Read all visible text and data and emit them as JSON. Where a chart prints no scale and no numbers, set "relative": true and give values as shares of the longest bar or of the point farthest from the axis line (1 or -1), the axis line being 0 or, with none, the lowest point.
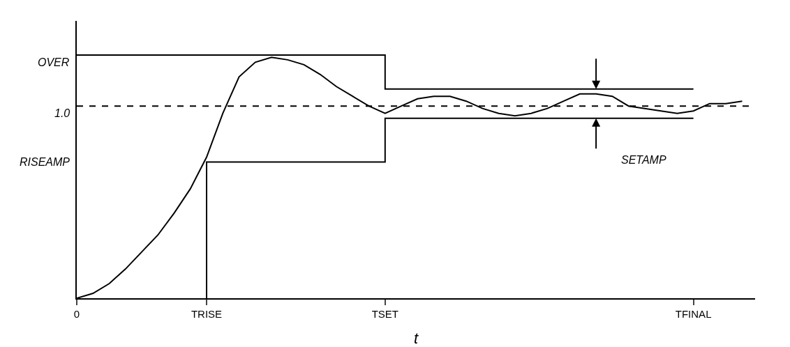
{
  "chart_data": {
    "type": "line",
    "xlabel": "t",
    "relative": true,
    "categories": [
      "0",
      null,
      null,
      null,
      null,
      null,
      null,
      null,
      "TRISE",
      null,
      null,
      null,
      null,
      null,
      null,
      null,
      null,
      null,
      null,
      "TSET",
      null,
      null,
      null,
      null,
      null,
      null,
      null,
      null,
      null,
      null,
      null,
      null,
      null,
      null,
      null,
      null,
      null,
      null,
      "TFINAL",
      null,
      null,
      null
    ],
    "grid": false,
    "marker": "none",
    "series": [
      {
        "color": "#000000",
        "line_style": "solid",
        "values": [
          0,
          0.02,
          0.06,
          0.12,
          0.19,
          0.26,
          0.35,
          0.45,
          0.58,
          0.76,
          0.91,
          0.97,
          0.99,
          0.98,
          0.96,
          0.92,
          0.87,
          0.83,
          0.79,
          0.76,
          0.79,
          0.82,
          0.83,
          0.83,
          0.81,
          0.78,
          0.76,
          0.75,
          0.76,
          0.78,
          0.81,
          0.84,
          0.84,
          0.83,
          0.79,
          0.78,
          0.77,
          0.76,
          0.77,
          0.8,
          0.8,
          0.81
        ]
      },
      {
        "type": "step",
        "color": "#000000",
        "line_style": "solid",
        "values": [
          1,
          1,
          1,
          1,
          1,
          1,
          1,
          1,
          1,
          1,
          1,
          1,
          1,
          1,
          1,
          1,
          1,
          1,
          1,
          1,
          0.86,
          0.86,
          0.86,
          0.86,
          0.86,
          0.86,
          0.86,
          0.86,
          0.86,
          0.86,
          0.86,
          0.86,
          0.86,
          0.86,
          0.86,
          0.86,
          0.86,
          0.86,
          0.86,
          null,
          null,
          null
        ]
      },
      {
        "type": "step",
        "color": "#000000",
        "line_style": "solid",
        "values": [
          null,
          null,
          null,
          null,
          null,
          null,
          null,
          null,
          0,
          0.56,
          0.56,
          0.56,
          0.56,
          0.56,
          0.56,
          0.56,
          0.56,
          0.56,
          0.56,
          0.56,
          0.74,
          0.74,
          0.74,
          0.74,
          0.74,
          0.74,
          0.74,
          0.74,
          0.74,
          0.74,
          0.74,
          0.74,
          0.74,
          0.74,
          0.74,
          0.74,
          0.74,
          0.74,
          0.74,
          null,
          null,
          null
        ]
      }
    ],
    "ref_lines": [
      {
        "axis": "y",
        "value": 0.79,
        "color": "#000000",
        "line_style": "dashed"
      }
    ],
    "annotations": [
      "OVER",
      "1.0",
      "RISEAMP",
      "SETAMP"
    ]
  }
}
